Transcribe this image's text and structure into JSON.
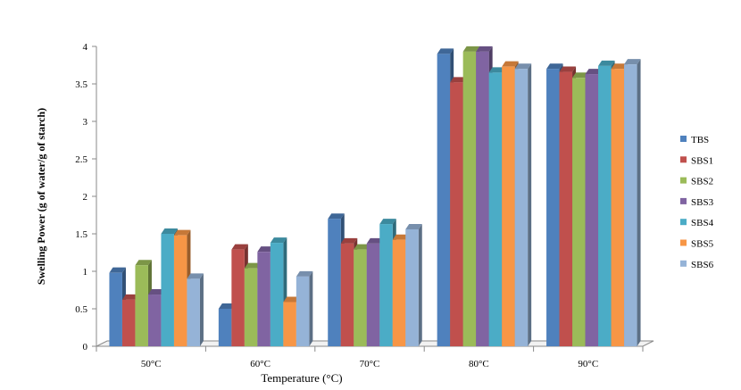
{
  "chart_data": {
    "type": "bar",
    "title": "",
    "xlabel": "Temperature (°C)",
    "ylabel": "Swelling Power (g of water/g of starch)",
    "ylim": [
      0,
      4
    ],
    "yticks": [
      "0",
      "0.5",
      "1",
      "1.5",
      "2",
      "2.5",
      "3",
      "3.5",
      "4"
    ],
    "categories": [
      "50°C",
      "60°C",
      "70°C",
      "80°C",
      "90°C"
    ],
    "grid": false,
    "legend_position": "right",
    "series": [
      {
        "name": "TBS",
        "color": "#4F81BD",
        "values": [
          0.98,
          0.5,
          1.7,
          3.9,
          3.7
        ]
      },
      {
        "name": "SBS1",
        "color": "#C0504D",
        "values": [
          0.62,
          1.29,
          1.37,
          3.52,
          3.66
        ]
      },
      {
        "name": "SBS2",
        "color": "#9BBB59",
        "values": [
          1.08,
          1.04,
          1.29,
          3.93,
          3.58
        ]
      },
      {
        "name": "SBS3",
        "color": "#8064A2",
        "values": [
          0.69,
          1.26,
          1.37,
          3.93,
          3.63
        ]
      },
      {
        "name": "SBS4",
        "color": "#4BACC6",
        "values": [
          1.5,
          1.38,
          1.63,
          3.65,
          3.74
        ]
      },
      {
        "name": "SBS5",
        "color": "#F79646",
        "values": [
          1.48,
          0.59,
          1.42,
          3.73,
          3.7
        ]
      },
      {
        "name": "SBS6",
        "color": "#95B3D7",
        "values": [
          0.9,
          0.93,
          1.56,
          3.7,
          3.76
        ]
      }
    ]
  }
}
